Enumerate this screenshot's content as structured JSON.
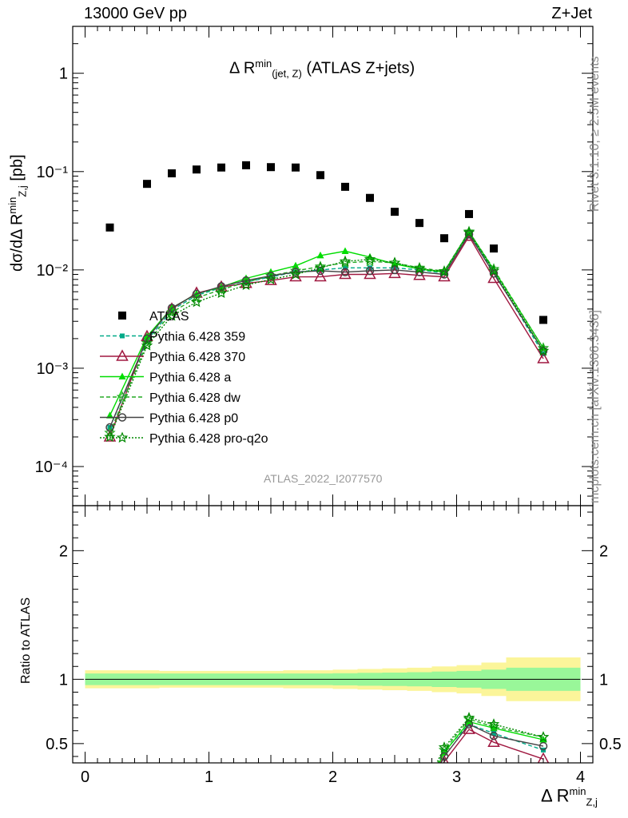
{
  "header": {
    "left": "13000 GeV pp",
    "right": "Z+Jet"
  },
  "side_labels": {
    "rivet": "Rivet 3.1.10, ≥ 2.5M events",
    "mcplots": "mcplots.cern.ch [arXiv:1306.3436]"
  },
  "labels": {
    "plot_title_main": "Δ R",
    "plot_title_sup": "min",
    "plot_title_sub": "(jet, Z)",
    "plot_title_tail": " (ATLAS Z+jets)",
    "watermark": "ATLAS_2022_I2077570",
    "ylabel_top_main": "dσ/dΔ R",
    "ylabel_top_sup": "min",
    "ylabel_top_sub": "Z,j",
    "ylabel_top_unit": " [pb]",
    "ylabel_bottom": "Ratio to ATLAS",
    "xlabel_main": "Δ R",
    "xlabel_sup": "min",
    "xlabel_sub": "Z,j"
  },
  "chart_data": [
    {
      "type": "scatter",
      "panel": "main",
      "yscale": "log",
      "xlim": [
        -0.1,
        4.1
      ],
      "ylim": [
        4e-05,
        3
      ],
      "yticks": [
        0.0001,
        0.001,
        0.01,
        0.1,
        1
      ],
      "ytick_labels": [
        "10⁻⁴",
        "10⁻³",
        "10⁻²",
        "10⁻¹",
        "1"
      ],
      "legend_position": "middle-left",
      "x": [
        0.2,
        0.5,
        0.7,
        0.9,
        1.1,
        1.3,
        1.5,
        1.7,
        1.9,
        2.1,
        2.3,
        2.5,
        2.7,
        2.9,
        3.1,
        3.3,
        3.7
      ],
      "series": [
        {
          "name": "ATLAS",
          "color": "#000000",
          "marker": "square",
          "line": "none",
          "values": [
            0.027,
            0.075,
            0.096,
            0.105,
            0.11,
            0.116,
            0.111,
            0.11,
            0.092,
            0.07,
            0.054,
            0.039,
            0.03,
            0.021,
            0.037,
            0.0165,
            0.0031
          ]
        },
        {
          "name": "Pythia 6.428 359",
          "color": "#00aa88",
          "marker": "smallsquare",
          "line": "dashed",
          "values": [
            0.00025,
            0.0019,
            0.0039,
            0.0055,
            0.0066,
            0.0075,
            0.0085,
            0.0095,
            0.01,
            0.0105,
            0.0105,
            0.0105,
            0.01,
            0.0093,
            0.024,
            0.0095,
            0.0014
          ]
        },
        {
          "name": "Pythia 6.428 370",
          "color": "#a01840",
          "marker": "triangle-open",
          "line": "solid",
          "values": [
            0.0002,
            0.0021,
            0.004,
            0.0058,
            0.0067,
            0.0073,
            0.0078,
            0.0085,
            0.0085,
            0.009,
            0.009,
            0.0092,
            0.0088,
            0.0085,
            0.022,
            0.0082,
            0.00125
          ]
        },
        {
          "name": "Pythia 6.428 a",
          "color": "#00dd00",
          "marker": "triangle-filled",
          "line": "solid",
          "values": [
            0.00033,
            0.0021,
            0.0041,
            0.0057,
            0.0067,
            0.0082,
            0.0095,
            0.011,
            0.014,
            0.0155,
            0.0135,
            0.0115,
            0.0102,
            0.0095,
            0.0245,
            0.01,
            0.0016
          ]
        },
        {
          "name": "Pythia 6.428 dw",
          "color": "#22aa22",
          "marker": "star",
          "line": "dashed",
          "values": [
            0.00022,
            0.0018,
            0.0037,
            0.0052,
            0.0063,
            0.0075,
            0.0087,
            0.0098,
            0.0108,
            0.0118,
            0.0122,
            0.0118,
            0.0105,
            0.0097,
            0.0245,
            0.0102,
            0.0016
          ]
        },
        {
          "name": "Pythia 6.428 p0",
          "color": "#444444",
          "marker": "circle-open",
          "line": "solid",
          "values": [
            0.00025,
            0.002,
            0.0041,
            0.0057,
            0.0068,
            0.0078,
            0.0087,
            0.0095,
            0.0098,
            0.0095,
            0.0098,
            0.01,
            0.0095,
            0.009,
            0.023,
            0.0092,
            0.0015
          ]
        },
        {
          "name": "Pythia 6.428 pro-q2o",
          "color": "#008800",
          "marker": "star",
          "line": "dotted",
          "values": [
            0.0002,
            0.0017,
            0.0034,
            0.0047,
            0.0058,
            0.007,
            0.008,
            0.009,
            0.0105,
            0.0122,
            0.0128,
            0.0118,
            0.0103,
            0.0096,
            0.024,
            0.0098,
            0.0015
          ]
        }
      ]
    },
    {
      "type": "line",
      "panel": "ratio",
      "xlim": [
        -0.1,
        4.1
      ],
      "ylim": [
        0.35,
        2.35
      ],
      "xticks": [
        0,
        1,
        2,
        3,
        4
      ],
      "xtick_labels": [
        "0",
        "1",
        "2",
        "3",
        "4"
      ],
      "yticks": [
        0.5,
        1,
        2
      ],
      "ytick_labels": [
        "0.5",
        "1",
        "2"
      ],
      "x": [
        2.9,
        3.1,
        3.3,
        3.7
      ],
      "bands": {
        "bin_edges": [
          0.0,
          0.3,
          0.6,
          0.8,
          1.0,
          1.2,
          1.4,
          1.6,
          1.8,
          2.0,
          2.2,
          2.4,
          2.6,
          2.8,
          3.0,
          3.2,
          3.4,
          4.0
        ],
        "inner_halfwidth": [
          0.045,
          0.045,
          0.045,
          0.045,
          0.045,
          0.045,
          0.045,
          0.045,
          0.045,
          0.047,
          0.05,
          0.052,
          0.055,
          0.06,
          0.065,
          0.075,
          0.09
        ],
        "outer_halfwidth": [
          0.07,
          0.07,
          0.065,
          0.065,
          0.065,
          0.065,
          0.065,
          0.07,
          0.07,
          0.075,
          0.08,
          0.085,
          0.09,
          0.1,
          0.11,
          0.13,
          0.17
        ],
        "inner_color": "#99f799",
        "outer_color": "#fbf59a"
      },
      "series": [
        {
          "name": "Pythia 6.428 359",
          "color": "#00aa88",
          "values": [
            0.44,
            0.65,
            0.58,
            0.45
          ]
        },
        {
          "name": "Pythia 6.428 370",
          "color": "#a01840",
          "values": [
            0.36,
            0.61,
            0.51,
            0.38
          ]
        },
        {
          "name": "Pythia 6.428 a",
          "color": "#00dd00",
          "values": [
            0.43,
            0.67,
            0.62,
            0.53
          ]
        },
        {
          "name": "Pythia 6.428 dw",
          "color": "#22aa22",
          "values": [
            0.45,
            0.69,
            0.63,
            0.55
          ]
        },
        {
          "name": "Pythia 6.428 p0",
          "color": "#444444",
          "values": [
            0.4,
            0.65,
            0.56,
            0.48
          ]
        },
        {
          "name": "Pythia 6.428 pro-q2o",
          "color": "#008800",
          "values": [
            0.47,
            0.7,
            0.65,
            0.55
          ]
        }
      ]
    }
  ]
}
